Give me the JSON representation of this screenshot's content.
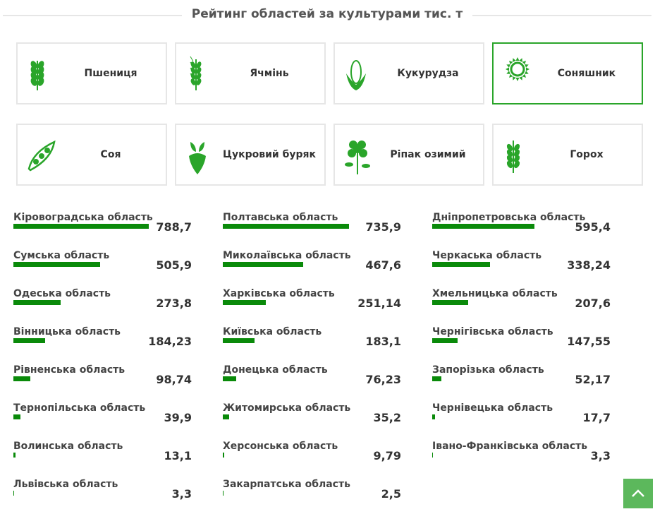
{
  "title": "Рейтинг областей за культурами тис. т",
  "crops": [
    "Пшениця",
    "Ячмінь",
    "Кукурудза",
    "Соняшник",
    "Соя",
    "Цукровий буряк",
    "Ріпак озимий",
    "Горох"
  ],
  "ranking": [
    {
      "name": "Кіровоградська область",
      "value": 788.7,
      "label": "788,7"
    },
    {
      "name": "Полтавська область",
      "value": 735.9,
      "label": "735,9"
    },
    {
      "name": "Дніпропетровська область",
      "value": 595.4,
      "label": "595,4"
    },
    {
      "name": "Сумська область",
      "value": 505.9,
      "label": "505,9"
    },
    {
      "name": "Миколаївська область",
      "value": 467.6,
      "label": "467,6"
    },
    {
      "name": "Черкаська область",
      "value": 338.24,
      "label": "338,24"
    },
    {
      "name": "Одеська область",
      "value": 273.8,
      "label": "273,8"
    },
    {
      "name": "Харківська область",
      "value": 251.14,
      "label": "251,14"
    },
    {
      "name": "Хмельницька область",
      "value": 207.6,
      "label": "207,6"
    },
    {
      "name": "Вінницька область",
      "value": 184.23,
      "label": "184,23"
    },
    {
      "name": "Київська область",
      "value": 183.1,
      "label": "183,1"
    },
    {
      "name": "Чернігівська область",
      "value": 147.55,
      "label": "147,55"
    },
    {
      "name": "Рівненська область",
      "value": 98.74,
      "label": "98,74"
    },
    {
      "name": "Донецька область",
      "value": 76.23,
      "label": "76,23"
    },
    {
      "name": "Запорізька область",
      "value": 52.17,
      "label": "52,17"
    },
    {
      "name": "Тернопільська область",
      "value": 39.9,
      "label": "39,9"
    },
    {
      "name": "Житомирська область",
      "value": 35.2,
      "label": "35,2"
    },
    {
      "name": "Чернівецька область",
      "value": 17.7,
      "label": "17,7"
    },
    {
      "name": "Волинська область",
      "value": 13.1,
      "label": "13,1"
    },
    {
      "name": "Херсонська область",
      "value": 9.79,
      "label": "9,79"
    },
    {
      "name": "Івано-Франківська область",
      "value": 3.3,
      "label": "3,3"
    },
    {
      "name": "Львівська область",
      "value": 3.3,
      "label": "3,3"
    },
    {
      "name": "Закарпатська область",
      "value": 2.5,
      "label": "2,5"
    }
  ]
}
